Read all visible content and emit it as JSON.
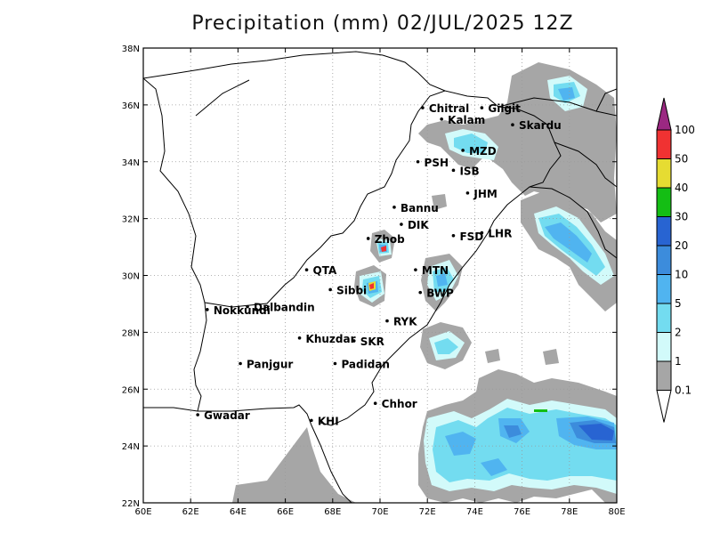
{
  "title": "Precipitation (mm) 02/JUL/2025 12Z",
  "map": {
    "lon_range": [
      60,
      80
    ],
    "lat_range": [
      22,
      38
    ],
    "x_ticks": [
      "60E",
      "62E",
      "64E",
      "66E",
      "68E",
      "70E",
      "72E",
      "74E",
      "76E",
      "78E",
      "80E"
    ],
    "y_ticks": [
      "22N",
      "24N",
      "26N",
      "28N",
      "30N",
      "32N",
      "34N",
      "36N",
      "38N"
    ],
    "grid": "dotted",
    "cities": [
      {
        "name": "Chitral",
        "lon": 71.8,
        "lat": 35.9
      },
      {
        "name": "Gilgit",
        "lon": 74.3,
        "lat": 35.9
      },
      {
        "name": "Kalam",
        "lon": 72.6,
        "lat": 35.5
      },
      {
        "name": "Skardu",
        "lon": 75.6,
        "lat": 35.3
      },
      {
        "name": "MZD",
        "lon": 73.5,
        "lat": 34.4
      },
      {
        "name": "PSH",
        "lon": 71.6,
        "lat": 34.0
      },
      {
        "name": "ISB",
        "lon": 73.1,
        "lat": 33.7
      },
      {
        "name": "JHM",
        "lon": 73.7,
        "lat": 32.9
      },
      {
        "name": "Bannu",
        "lon": 70.6,
        "lat": 32.4
      },
      {
        "name": "DIK",
        "lon": 70.9,
        "lat": 31.8
      },
      {
        "name": "FSD",
        "lon": 73.1,
        "lat": 31.4
      },
      {
        "name": "LHR",
        "lon": 74.3,
        "lat": 31.5
      },
      {
        "name": "Zhob",
        "lon": 69.5,
        "lat": 31.3
      },
      {
        "name": "QTA",
        "lon": 66.9,
        "lat": 30.2
      },
      {
        "name": "MTN",
        "lon": 71.5,
        "lat": 30.2
      },
      {
        "name": "Sibbi",
        "lon": 67.9,
        "lat": 29.5
      },
      {
        "name": "BWP",
        "lon": 71.7,
        "lat": 29.4
      },
      {
        "name": "Nokkundi",
        "lon": 62.7,
        "lat": 28.8
      },
      {
        "name": "Dalbandin",
        "lon": 64.4,
        "lat": 28.9
      },
      {
        "name": "RYK",
        "lon": 70.3,
        "lat": 28.4
      },
      {
        "name": "Khuzdar",
        "lon": 66.6,
        "lat": 27.8
      },
      {
        "name": "SKR",
        "lon": 68.9,
        "lat": 27.7
      },
      {
        "name": "Padidan",
        "lon": 68.1,
        "lat": 26.9
      },
      {
        "name": "Panjgur",
        "lon": 64.1,
        "lat": 26.9
      },
      {
        "name": "Chhor",
        "lon": 69.8,
        "lat": 25.5
      },
      {
        "name": "KHI",
        "lon": 67.1,
        "lat": 24.9
      },
      {
        "name": "Gwadar",
        "lon": 62.3,
        "lat": 25.1
      }
    ]
  },
  "colorbar": {
    "labels": [
      "0.1",
      "1",
      "2",
      "5",
      "10",
      "20",
      "30",
      "40",
      "50",
      "100"
    ],
    "colors": [
      "#a6a6a6",
      "#d2fafa",
      "#73dcf0",
      "#50b4f0",
      "#3c8cdc",
      "#2864d2",
      "#14be14",
      "#e6dc32",
      "#f03232",
      "#9b2882"
    ]
  }
}
